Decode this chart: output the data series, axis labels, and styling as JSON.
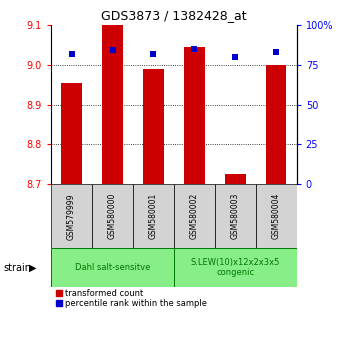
{
  "title": "GDS3873 / 1382428_at",
  "samples": [
    "GSM579999",
    "GSM580000",
    "GSM580001",
    "GSM580002",
    "GSM580003",
    "GSM580004"
  ],
  "transformed_counts": [
    8.955,
    9.1,
    8.99,
    9.045,
    8.725,
    9.0
  ],
  "percentile_ranks": [
    82,
    84,
    82,
    85,
    80,
    83
  ],
  "ylim_left": [
    8.7,
    9.1
  ],
  "ylim_right": [
    0,
    100
  ],
  "yticks_left": [
    8.7,
    8.8,
    8.9,
    9.0,
    9.1
  ],
  "yticks_right": [
    0,
    25,
    50,
    75,
    100
  ],
  "bar_color": "#cc0000",
  "dot_color": "#0000cc",
  "baseline": 8.7,
  "groups": [
    {
      "label": "Dahl salt-sensitve",
      "start": 0,
      "end": 3,
      "color": "#88ee88"
    },
    {
      "label": "S.LEW(10)x12x2x3x5\ncongenic",
      "start": 3,
      "end": 6,
      "color": "#88ee88"
    }
  ],
  "group_border_color": "#007700",
  "group_text_color": "#007700",
  "strain_label": "strain",
  "legend_red_label": "transformed count",
  "legend_blue_label": "percentile rank within the sample",
  "dotted_grid": [
    8.8,
    8.9,
    9.0
  ],
  "background_color": "#ffffff",
  "sample_box_color": "#d3d3d3",
  "tick_label_fontsize": 7,
  "title_fontsize": 9
}
